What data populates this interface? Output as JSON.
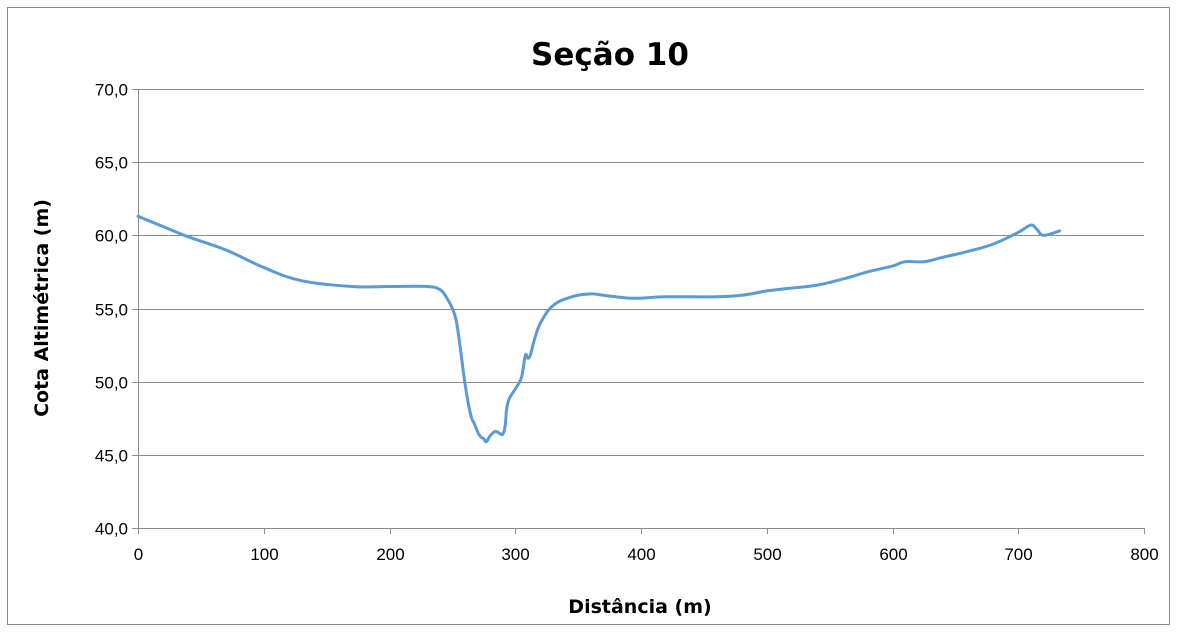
{
  "chart_data": {
    "type": "line",
    "title": "Seção 10",
    "xlabel": "Distância (m)",
    "ylabel": "Cota Altimétrica (m)",
    "xlim": [
      0,
      800
    ],
    "ylim": [
      40,
      70
    ],
    "x_ticks": [
      0,
      100,
      200,
      300,
      400,
      500,
      600,
      700,
      800
    ],
    "x_tick_labels": [
      "0",
      "100",
      "200",
      "300",
      "400",
      "500",
      "600",
      "700",
      "800"
    ],
    "y_ticks": [
      40,
      45,
      50,
      55,
      60,
      65,
      70
    ],
    "y_tick_labels": [
      "40,0",
      "45,0",
      "50,0",
      "55,0",
      "60,0",
      "65,0",
      "70,0"
    ],
    "grid": "horizontal",
    "legend": "none",
    "series": [
      {
        "color": "#5b9bd5",
        "x": [
          0,
          20,
          40,
          70,
          100,
          130,
          170,
          200,
          230,
          240,
          245,
          250,
          253,
          256,
          259,
          262,
          265,
          267,
          269,
          271,
          273,
          275,
          277,
          280,
          284,
          287,
          290,
          292,
          293,
          295,
          300,
          305,
          308,
          310,
          312,
          315,
          320,
          330,
          345,
          360,
          370,
          380,
          395,
          420,
          460,
          480,
          500,
          520,
          540,
          560,
          580,
          600,
          610,
          625,
          640,
          660,
          680,
          700,
          710,
          715,
          720,
          733
        ],
        "y": [
          61.3,
          60.6,
          59.9,
          59.0,
          57.8,
          56.9,
          56.5,
          56.5,
          56.5,
          56.3,
          55.8,
          55.0,
          54.2,
          52.5,
          50.5,
          48.8,
          47.6,
          47.2,
          46.8,
          46.4,
          46.2,
          46.1,
          45.9,
          46.3,
          46.6,
          46.5,
          46.4,
          47.0,
          48.0,
          48.8,
          49.5,
          50.3,
          51.8,
          51.6,
          51.8,
          52.8,
          54.0,
          55.2,
          55.8,
          56.0,
          55.9,
          55.8,
          55.7,
          55.8,
          55.8,
          55.9,
          56.2,
          56.4,
          56.6,
          57.0,
          57.5,
          57.9,
          58.2,
          58.2,
          58.5,
          58.9,
          59.4,
          60.2,
          60.7,
          60.4,
          60.0,
          60.3
        ]
      }
    ]
  }
}
